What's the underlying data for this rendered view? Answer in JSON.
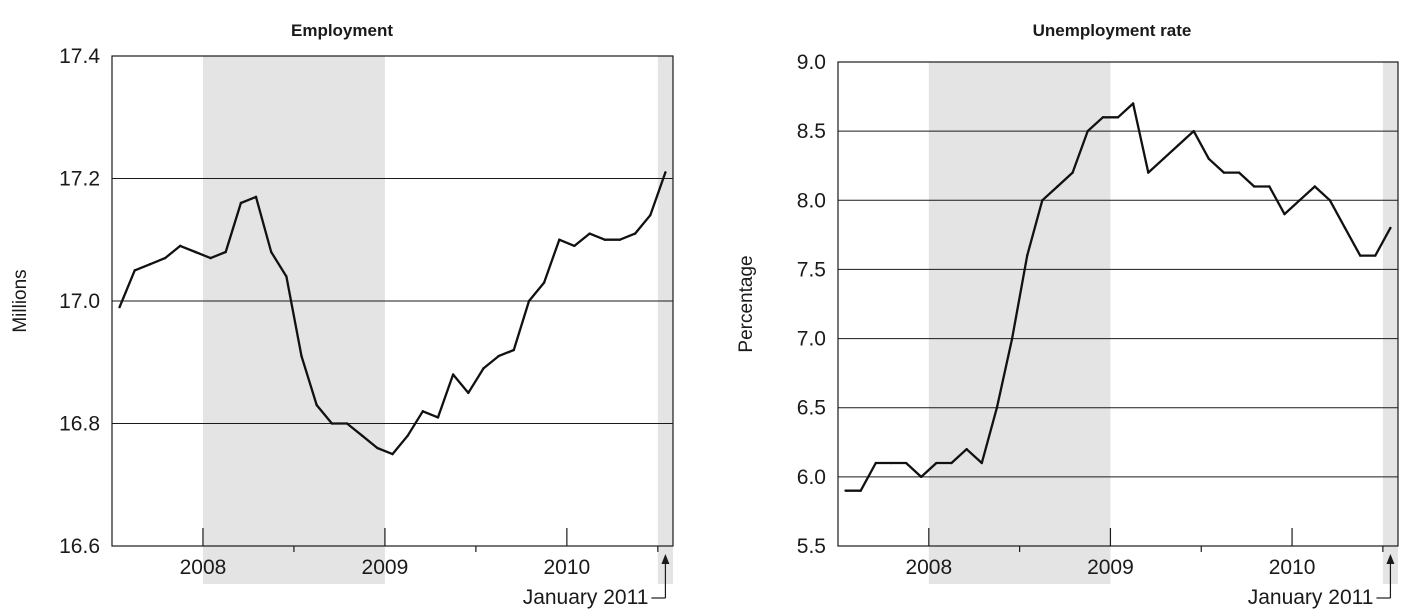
{
  "chart_data": [
    {
      "type": "line",
      "title": "Employment",
      "ylabel": "Millions",
      "xlabel": "",
      "ylim": [
        16.6,
        17.4
      ],
      "y_ticks": [
        "16.6",
        "16.8",
        "17.0",
        "17.2",
        "17.4"
      ],
      "x_tick_labels": [
        "2008",
        "2009",
        "2010"
      ],
      "annotation": "January 2011",
      "grid": true,
      "shaded_periods": [
        [
          "2008-07",
          "2009-06"
        ],
        [
          "2011-01",
          "2011-01"
        ]
      ],
      "series": [
        {
          "x": [
            "2008-01",
            "2008-02",
            "2008-03",
            "2008-04",
            "2008-05",
            "2008-06",
            "2008-07",
            "2008-08",
            "2008-09",
            "2008-10",
            "2008-11",
            "2008-12",
            "2009-01",
            "2009-02",
            "2009-03",
            "2009-04",
            "2009-05",
            "2009-06",
            "2009-07",
            "2009-08",
            "2009-09",
            "2009-10",
            "2009-11",
            "2009-12",
            "2010-01",
            "2010-02",
            "2010-03",
            "2010-04",
            "2010-05",
            "2010-06",
            "2010-07",
            "2010-08",
            "2010-09",
            "2010-10",
            "2010-11",
            "2010-12",
            "2011-01"
          ],
          "values": [
            16.99,
            17.05,
            17.06,
            17.07,
            17.09,
            17.08,
            17.07,
            17.08,
            17.16,
            17.17,
            17.08,
            17.04,
            16.91,
            16.83,
            16.8,
            16.8,
            16.78,
            16.76,
            16.75,
            16.78,
            16.82,
            16.81,
            16.88,
            16.85,
            16.89,
            16.91,
            16.92,
            17.0,
            17.03,
            17.1,
            17.09,
            17.11,
            17.1,
            17.1,
            17.11,
            17.14,
            17.21
          ]
        }
      ]
    },
    {
      "type": "line",
      "title": "Unemployment rate",
      "ylabel": "Percentage",
      "xlabel": "",
      "ylim": [
        5.5,
        9.0
      ],
      "y_ticks": [
        "5.5",
        "6.0",
        "6.5",
        "7.0",
        "7.5",
        "8.0",
        "8.5",
        "9.0"
      ],
      "x_tick_labels": [
        "2008",
        "2009",
        "2010"
      ],
      "annotation": "January 2011",
      "grid": true,
      "shaded_periods": [
        [
          "2008-07",
          "2009-06"
        ],
        [
          "2011-01",
          "2011-01"
        ]
      ],
      "series": [
        {
          "x": [
            "2008-01",
            "2008-02",
            "2008-03",
            "2008-04",
            "2008-05",
            "2008-06",
            "2008-07",
            "2008-08",
            "2008-09",
            "2008-10",
            "2008-11",
            "2008-12",
            "2009-01",
            "2009-02",
            "2009-03",
            "2009-04",
            "2009-05",
            "2009-06",
            "2009-07",
            "2009-08",
            "2009-09",
            "2009-10",
            "2009-11",
            "2009-12",
            "2010-01",
            "2010-02",
            "2010-03",
            "2010-04",
            "2010-05",
            "2010-06",
            "2010-07",
            "2010-08",
            "2010-09",
            "2010-10",
            "2010-11",
            "2010-12",
            "2011-01"
          ],
          "values": [
            5.9,
            5.9,
            6.1,
            6.1,
            6.1,
            6.0,
            6.1,
            6.1,
            6.2,
            6.1,
            6.5,
            7.0,
            7.6,
            8.0,
            8.1,
            8.2,
            8.5,
            8.6,
            8.6,
            8.7,
            8.2,
            8.3,
            8.4,
            8.5,
            8.3,
            8.2,
            8.2,
            8.1,
            8.1,
            7.9,
            8.0,
            8.1,
            8.0,
            7.8,
            7.6,
            7.6,
            7.8
          ]
        }
      ]
    }
  ]
}
